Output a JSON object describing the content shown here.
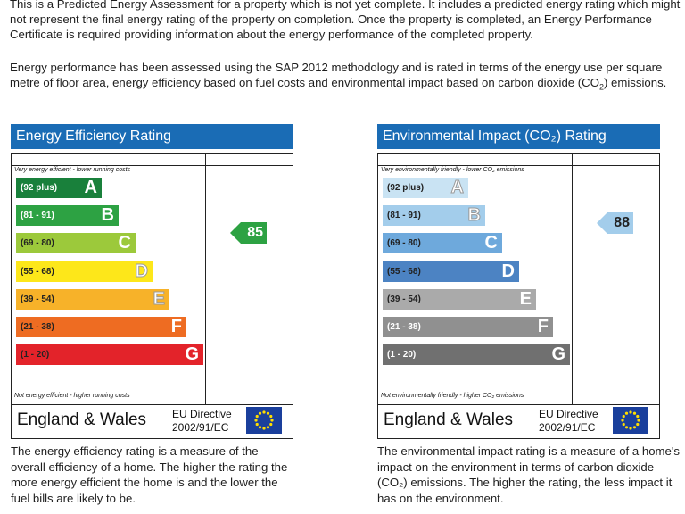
{
  "intro": {
    "p1": "This is a Predicted Energy Assessment for a property which is not yet complete. It includes a predicted energy rating which might not represent the final energy rating of the property on completion. Once the property is completed, an Energy Performance Certificate is required providing information about the energy performance of the completed property.",
    "p2_a": "Energy performance has been assessed using the SAP 2012 methodology and is rated in terms of the energy use per square metre of floor area, energy efficiency based on fuel costs and environmental impact based on carbon dioxide (CO",
    "p2_sub": "2",
    "p2_b": ") emissions."
  },
  "efficiency": {
    "title": "Energy Efficiency Rating",
    "top_caption": "Very energy efficient - lower running costs",
    "bottom_caption": "Not energy efficient - higher running costs",
    "bands": [
      {
        "range": "(92 plus)",
        "letter": "A",
        "color": "#19803b",
        "text_color": "#ffffff"
      },
      {
        "range": "(81 - 91)",
        "letter": "B",
        "color": "#2da243",
        "text_color": "#ffffff"
      },
      {
        "range": "(69 - 80)",
        "letter": "C",
        "color": "#9cc93b",
        "text_color": "#222222"
      },
      {
        "range": "(55 - 68)",
        "letter": "D",
        "color": "#fde71a",
        "text_color": "#222222"
      },
      {
        "range": "(39 - 54)",
        "letter": "E",
        "color": "#f7b229",
        "text_color": "#222222"
      },
      {
        "range": "(21 - 38)",
        "letter": "F",
        "color": "#ee6c22",
        "text_color": "#222222"
      },
      {
        "range": "(1 - 20)",
        "letter": "G",
        "color": "#e3232a",
        "text_color": "#222222"
      }
    ],
    "potential": {
      "value": "85",
      "color": "#2da243"
    },
    "region": "England & Wales",
    "directive_line1": "EU Directive",
    "directive_line2": "2002/91/EC",
    "description": "The energy efficiency rating is a measure of the overall efficiency of a home. The higher the rating the more energy efficient the home is and the lower the fuel bills are likely to be."
  },
  "environmental": {
    "title": "Environmental Impact (CO₂) Rating",
    "top_caption": "Very environmentally friendly - lower CO₂ emissions",
    "bottom_caption": "Not environmentally friendly - higher CO₂ emissions",
    "bands": [
      {
        "range": "(92 plus)",
        "letter": "A",
        "color": "#c9e3f3",
        "text_color": "#222222"
      },
      {
        "range": "(81 - 91)",
        "letter": "B",
        "color": "#a3cdeb",
        "text_color": "#222222"
      },
      {
        "range": "(69 - 80)",
        "letter": "C",
        "color": "#6ea9dc",
        "text_color": "#222222"
      },
      {
        "range": "(55 - 68)",
        "letter": "D",
        "color": "#4c83c3",
        "text_color": "#222222"
      },
      {
        "range": "(39 - 54)",
        "letter": "E",
        "color": "#aaaaaa",
        "text_color": "#222222"
      },
      {
        "range": "(21 - 38)",
        "letter": "F",
        "color": "#909090",
        "text_color": "#ffffff"
      },
      {
        "range": "(1 - 20)",
        "letter": "G",
        "color": "#707070",
        "text_color": "#ffffff"
      }
    ],
    "potential": {
      "value": "88",
      "color": "#a3cdeb"
    },
    "region": "England & Wales",
    "directive_line1": "EU Directive",
    "directive_line2": "2002/91/EC",
    "description": "The environmental impact rating is a measure of a home's impact on the environment in terms of carbon dioxide (CO₂) emissions. The higher the rating, the less impact it has on the environment."
  },
  "icons": {
    "eu_flag": "eu-flag-icon"
  }
}
